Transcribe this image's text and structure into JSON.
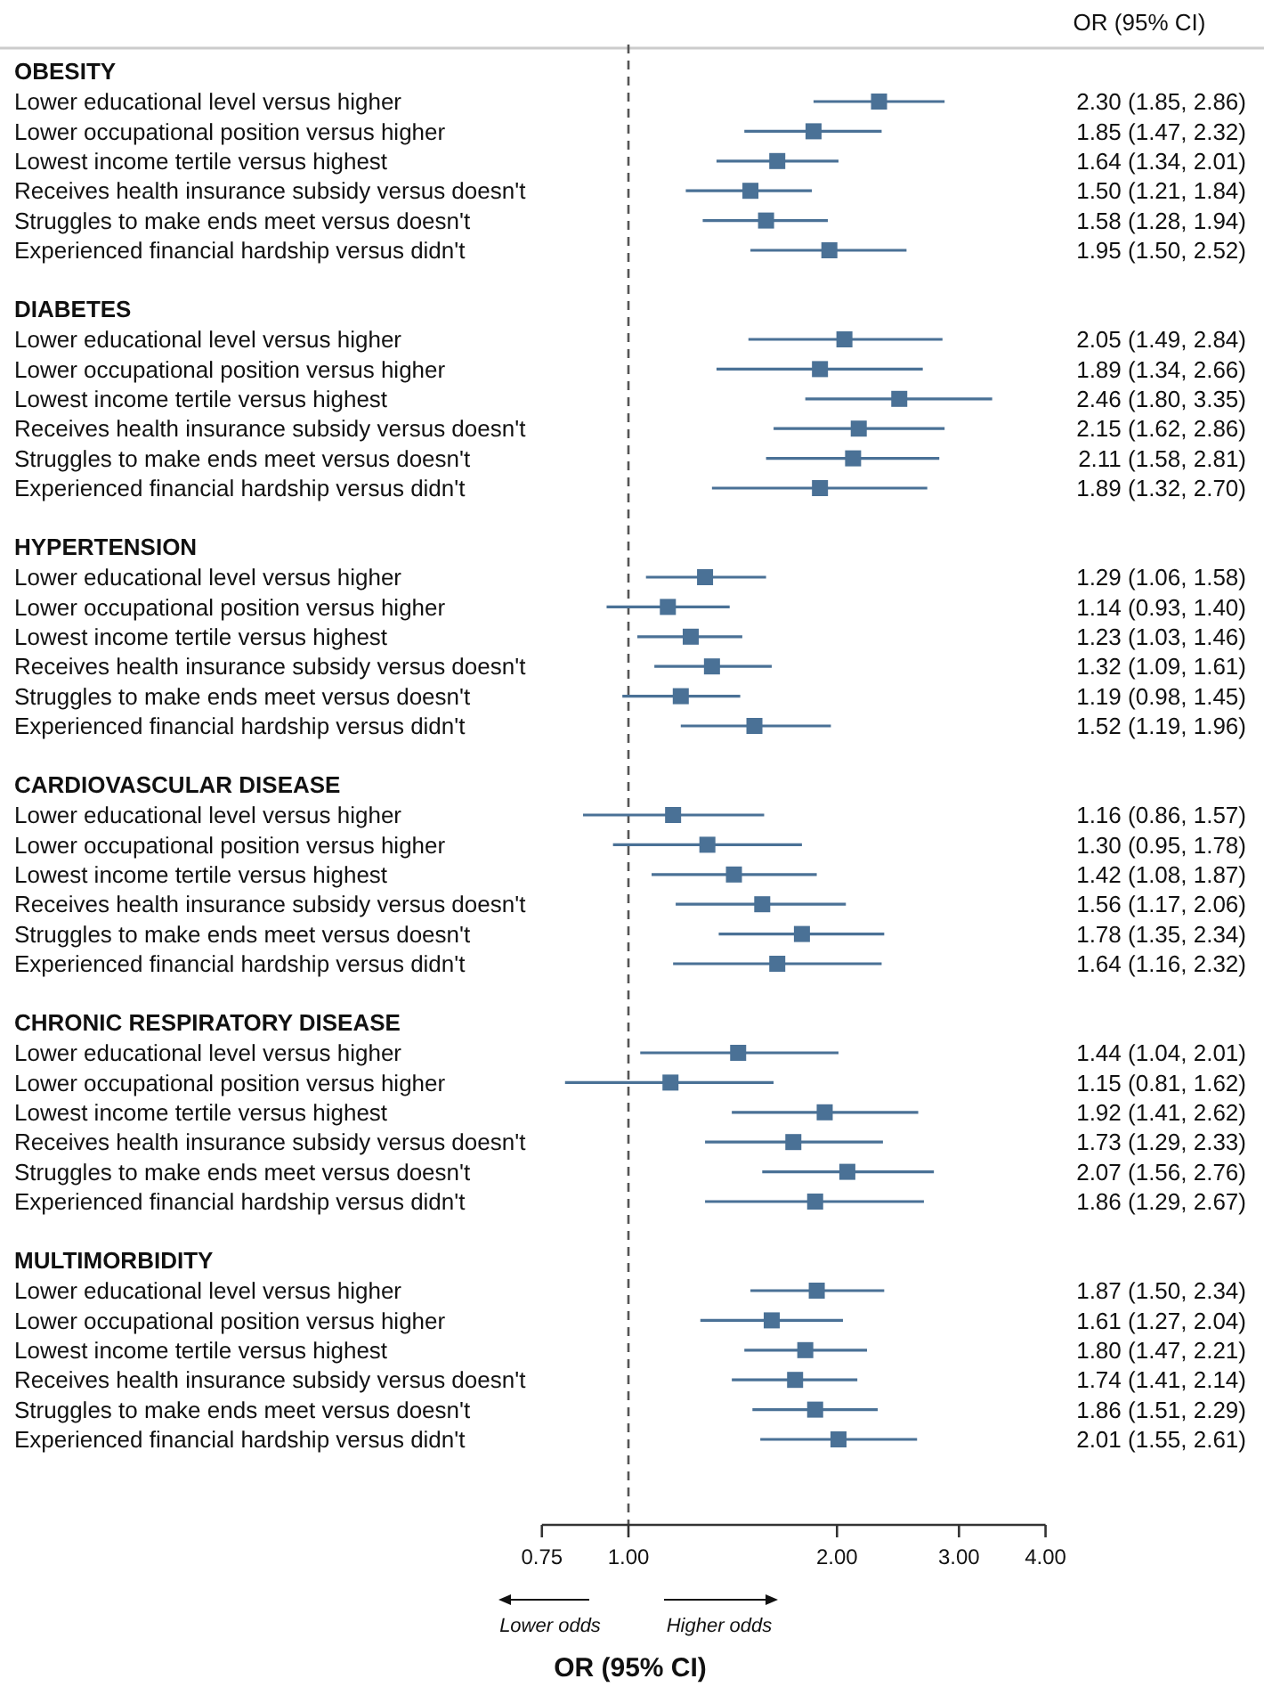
{
  "chart_data": {
    "type": "scatter",
    "orientation": "horizontal",
    "log": "x",
    "marker": "square",
    "xlabel": "OR (95% CI)",
    "annotations": [
      "OR (95% CI)",
      "Lower odds",
      "Higher odds"
    ],
    "xlim": [
      0.75,
      4
    ],
    "xticks": [
      {
        "value": 0.75,
        "label": "0.75"
      },
      {
        "value": 1,
        "label": "1.00"
      },
      {
        "value": 2,
        "label": "2.00"
      },
      {
        "value": 3,
        "label": "3.00"
      },
      {
        "value": 4,
        "label": "4.00"
      }
    ],
    "ref_lines": [
      {
        "axis": "x",
        "value": 1,
        "label": null,
        "color": "#555555",
        "line_style": "dashed"
      }
    ],
    "categories": [
      "OBESITY",
      "Lower educational level versus higher",
      "Lower occupational position versus higher",
      "Lowest income tertile versus highest",
      "Receives health insurance subsidy versus doesn't",
      "Struggles to make ends meet versus doesn't",
      "Experienced financial hardship versus didn't",
      "DIABETES",
      "Lower educational level versus higher",
      "Lower occupational position versus higher",
      "Lowest income tertile versus highest",
      "Receives health insurance subsidy versus doesn't",
      "Struggles to make ends meet versus doesn't",
      "Experienced financial hardship versus didn't",
      "HYPERTENSION",
      "Lower educational level versus higher",
      "Lower occupational position versus higher",
      "Lowest income tertile versus highest",
      "Receives health insurance subsidy versus doesn't",
      "Struggles to make ends meet versus doesn't",
      "Experienced financial hardship versus didn't",
      "CARDIOVASCULAR DISEASE",
      "Lower educational level versus higher",
      "Lower occupational position versus higher",
      "Lowest income tertile versus highest",
      "Receives health insurance subsidy versus doesn't",
      "Struggles to make ends meet versus doesn't",
      "Experienced financial hardship versus didn't",
      "CHRONIC RESPIRATORY DISEASE",
      "Lower educational level versus higher",
      "Lower occupational position versus higher",
      "Lowest income tertile versus highest",
      "Receives health insurance subsidy versus doesn't",
      "Struggles to make ends meet versus doesn't",
      "Experienced financial hardship versus didn't",
      "MULTIMORBIDITY",
      "Lower educational level versus higher",
      "Lower occupational position versus higher",
      "Lowest income tertile versus highest",
      "Receives health insurance subsidy versus doesn't",
      "Struggles to make ends meet versus doesn't",
      "Experienced financial hardship versus didn't"
    ],
    "series": [
      {
        "color": "#4a7196",
        "values": [
          null,
          2.3,
          1.85,
          1.64,
          1.5,
          1.58,
          1.95,
          null,
          2.05,
          1.89,
          2.46,
          2.15,
          2.11,
          1.89,
          null,
          1.29,
          1.14,
          1.23,
          1.32,
          1.19,
          1.52,
          null,
          1.16,
          1.3,
          1.42,
          1.56,
          1.78,
          1.64,
          null,
          1.44,
          1.15,
          1.92,
          1.73,
          2.07,
          1.86,
          null,
          1.87,
          1.61,
          1.8,
          1.74,
          1.86,
          2.01
        ],
        "errors": [
          null,
          [
            1.85,
            2.86
          ],
          [
            1.47,
            2.32
          ],
          [
            1.34,
            2.01
          ],
          [
            1.21,
            1.84
          ],
          [
            1.28,
            1.94
          ],
          [
            1.5,
            2.52
          ],
          null,
          [
            1.49,
            2.84
          ],
          [
            1.34,
            2.66
          ],
          [
            1.8,
            3.35
          ],
          [
            1.62,
            2.86
          ],
          [
            1.58,
            2.81
          ],
          [
            1.32,
            2.7
          ],
          null,
          [
            1.06,
            1.58
          ],
          [
            0.93,
            1.4
          ],
          [
            1.03,
            1.46
          ],
          [
            1.09,
            1.61
          ],
          [
            0.98,
            1.45
          ],
          [
            1.19,
            1.96
          ],
          null,
          [
            0.86,
            1.57
          ],
          [
            0.95,
            1.78
          ],
          [
            1.08,
            1.87
          ],
          [
            1.17,
            2.06
          ],
          [
            1.35,
            2.34
          ],
          [
            1.16,
            2.32
          ],
          null,
          [
            1.04,
            2.01
          ],
          [
            0.81,
            1.62
          ],
          [
            1.41,
            2.62
          ],
          [
            1.29,
            2.33
          ],
          [
            1.56,
            2.76
          ],
          [
            1.29,
            2.67
          ],
          null,
          [
            1.5,
            2.34
          ],
          [
            1.27,
            2.04
          ],
          [
            1.47,
            2.21
          ],
          [
            1.41,
            2.14
          ],
          [
            1.51,
            2.29
          ],
          [
            1.55,
            2.61
          ]
        ],
        "value_labels": [
          null,
          "2.30 (1.85, 2.86)",
          "1.85 (1.47, 2.32)",
          "1.64 (1.34, 2.01)",
          "1.50 (1.21, 1.84)",
          "1.58 (1.28, 1.94)",
          "1.95 (1.50, 2.52)",
          null,
          "2.05 (1.49, 2.84)",
          "1.89 (1.34, 2.66)",
          "2.46 (1.80, 3.35)",
          "2.15 (1.62, 2.86)",
          "2.11 (1.58, 2.81)",
          "1.89 (1.32, 2.70)",
          null,
          "1.29 (1.06, 1.58)",
          "1.14 (0.93, 1.40)",
          "1.23 (1.03, 1.46)",
          "1.32 (1.09, 1.61)",
          "1.19 (0.98, 1.45)",
          "1.52 (1.19, 1.96)",
          null,
          "1.16 (0.86, 1.57)",
          "1.30 (0.95, 1.78)",
          "1.42 (1.08, 1.87)",
          "1.56 (1.17, 2.06)",
          "1.78 (1.35, 2.34)",
          "1.64 (1.16, 2.32)",
          null,
          "1.44 (1.04, 2.01)",
          "1.15 (0.81, 1.62)",
          "1.92 (1.41, 2.62)",
          "1.73 (1.29, 2.33)",
          "2.07 (1.56, 2.76)",
          "1.86 (1.29, 2.67)",
          null,
          "1.87 (1.50, 2.34)",
          "1.61 (1.27, 2.04)",
          "1.80 (1.47, 2.21)",
          "1.74 (1.41, 2.14)",
          "1.86 (1.51, 2.29)",
          "2.01 (1.55, 2.61)"
        ]
      }
    ]
  }
}
